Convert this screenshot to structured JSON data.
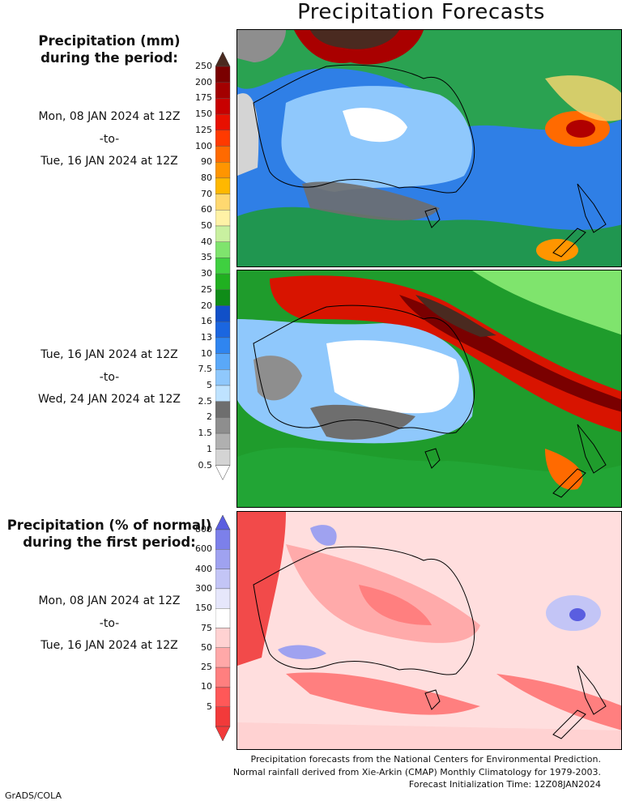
{
  "title": "Precipitation Forecasts",
  "section_mm": {
    "heading_line1": "Precipitation (mm)",
    "heading_line2": "during the period:",
    "period1": {
      "from": "Mon, 08 JAN 2024 at 12Z",
      "sep": "-to-",
      "to": "Tue, 16 JAN 2024 at 12Z"
    },
    "period2": {
      "from": "Tue, 16 JAN 2024 at 12Z",
      "sep": "-to-",
      "to": "Wed, 24 JAN 2024 at 12Z"
    }
  },
  "section_pct": {
    "heading_line1": "Precipitation (% of normal)",
    "heading_line2": "during the first period:",
    "period": {
      "from": "Mon, 08 JAN 2024 at 12Z",
      "sep": "-to-",
      "to": "Tue, 16 JAN 2024 at 12Z"
    }
  },
  "legend_mm": {
    "labels": [
      "250",
      "200",
      "175",
      "150",
      "125",
      "100",
      "90",
      "80",
      "70",
      "60",
      "50",
      "40",
      "35",
      "30",
      "25",
      "20",
      "16",
      "13",
      "10",
      "7.5",
      "5",
      "2.5",
      "2",
      "1.5",
      "1",
      "0.5"
    ],
    "colors": [
      "#4a2a20",
      "#7a0000",
      "#a30000",
      "#c80000",
      "#e81000",
      "#ff3a00",
      "#ff6a00",
      "#ff9500",
      "#ffb800",
      "#ffd870",
      "#fff2a6",
      "#c9f0a0",
      "#7fe46d",
      "#3fd040",
      "#20b020",
      "#0f8c18",
      "#1150c8",
      "#1b66e0",
      "#2f85f0",
      "#5aa8f8",
      "#8fc8fc",
      "#bfe3ff",
      "#6e6e6e",
      "#8e8e8e",
      "#b0b0b0",
      "#d4d4d4"
    ]
  },
  "legend_pct": {
    "labels": [
      "800",
      "600",
      "400",
      "300",
      "150",
      "75",
      "50",
      "25",
      "10",
      "5"
    ],
    "colors": [
      "#5a5ee0",
      "#7c80ea",
      "#9fa2f0",
      "#c3c5f6",
      "#e6e7fb",
      "#ffffff",
      "#ffd2d2",
      "#ffa8a8",
      "#ff7f7f",
      "#ff5858",
      "#f23a3a"
    ]
  },
  "footer": {
    "line1": "Precipitation forecasts from the National Centers for Environmental Prediction.",
    "line2": "Normal rainfall derived from Xie-Arkin (CMAP) Monthly Climatology for 1979-2003.",
    "line3": "Forecast Initialization Time: 12Z08JAN2024"
  },
  "credit": "GrADS/COLA"
}
